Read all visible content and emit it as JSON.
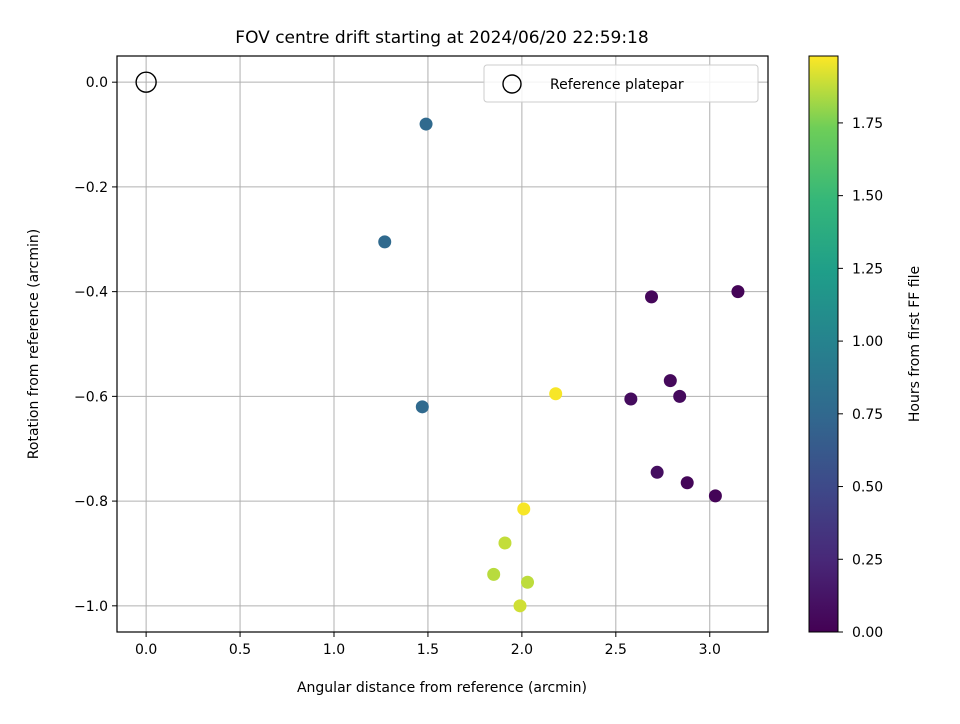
{
  "chart_data": {
    "type": "scatter",
    "title": "FOV centre drift starting at 2024/06/20 22:59:18",
    "xlabel": "Angular distance from reference (arcmin)",
    "ylabel": "Rotation from reference (arcmin)",
    "xlim": [
      -0.155,
      3.31
    ],
    "ylim": [
      -1.05,
      0.05
    ],
    "grid": true,
    "xticks": [
      0.0,
      0.5,
      1.0,
      1.5,
      2.0,
      2.5,
      3.0
    ],
    "xtick_labels": [
      "0.0",
      "0.5",
      "1.0",
      "1.5",
      "2.0",
      "2.5",
      "3.0"
    ],
    "yticks": [
      0.0,
      -0.2,
      -0.4,
      -0.6,
      -0.8,
      -1.0
    ],
    "ytick_labels": [
      "0.0",
      "−0.2",
      "−0.4",
      "−0.6",
      "−0.8",
      "−1.0"
    ],
    "legend": {
      "label": "Reference platepar",
      "position": "top-right"
    },
    "reference_point": {
      "x": 0.0,
      "y": 0.0
    },
    "colorbar": {
      "label": "Hours from first FF file",
      "min": 0.0,
      "max": 1.98,
      "ticks": [
        0.0,
        0.25,
        0.5,
        0.75,
        1.0,
        1.25,
        1.5,
        1.75
      ],
      "tick_labels": [
        "0.00",
        "0.25",
        "0.50",
        "0.75",
        "1.00",
        "1.25",
        "1.50",
        "1.75"
      ],
      "colormap": "viridis"
    },
    "points": [
      {
        "x": 3.15,
        "y": -0.4,
        "c": 0.02
      },
      {
        "x": 2.69,
        "y": -0.41,
        "c": 0.04
      },
      {
        "x": 2.79,
        "y": -0.57,
        "c": 0.05
      },
      {
        "x": 2.84,
        "y": -0.6,
        "c": 0.06
      },
      {
        "x": 2.58,
        "y": -0.605,
        "c": 0.07
      },
      {
        "x": 2.72,
        "y": -0.745,
        "c": 0.08
      },
      {
        "x": 2.88,
        "y": -0.765,
        "c": 0.03
      },
      {
        "x": 3.03,
        "y": -0.79,
        "c": 0.02
      },
      {
        "x": 1.49,
        "y": -0.08,
        "c": 0.76
      },
      {
        "x": 1.27,
        "y": -0.305,
        "c": 0.76
      },
      {
        "x": 1.47,
        "y": -0.62,
        "c": 0.76
      },
      {
        "x": 2.18,
        "y": -0.595,
        "c": 1.97
      },
      {
        "x": 2.01,
        "y": -0.815,
        "c": 1.97
      },
      {
        "x": 1.91,
        "y": -0.88,
        "c": 1.88
      },
      {
        "x": 1.85,
        "y": -0.94,
        "c": 1.86
      },
      {
        "x": 2.03,
        "y": -0.955,
        "c": 1.87
      },
      {
        "x": 1.99,
        "y": -1.0,
        "c": 1.9
      }
    ]
  }
}
